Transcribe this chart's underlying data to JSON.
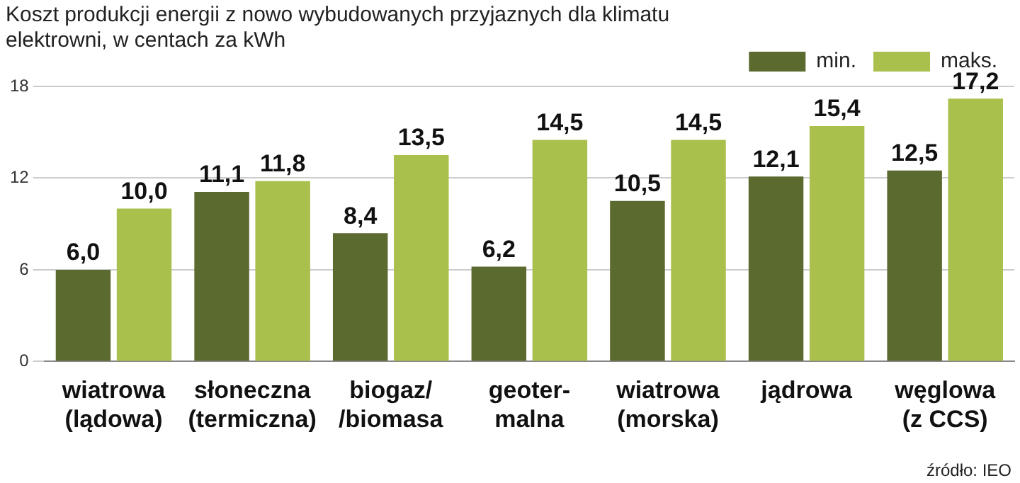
{
  "chart_data": {
    "type": "bar",
    "title": "Koszt produkcji energii z nowo wybudowanych przyjaznych dla klimatu elektrowni, w centach za kWh",
    "categories": [
      "wiatrowa\n(lądowa)",
      "słoneczna\n(termiczna)",
      "biogaz/\n/biomasa",
      "geoter-\nmalna",
      "wiatrowa\n(morska)",
      "jądrowa",
      "węglowa\n(z CCS)"
    ],
    "series": [
      {
        "name": "min.",
        "color": "#5b6a2f",
        "values": [
          6.0,
          11.1,
          8.4,
          6.2,
          10.5,
          12.1,
          12.5
        ],
        "value_labels": [
          "6,0",
          "11,1",
          "8,4",
          "6,2",
          "10,5",
          "12,1",
          "12,5"
        ]
      },
      {
        "name": "maks.",
        "color": "#a9c04c",
        "values": [
          10.0,
          11.8,
          13.5,
          14.5,
          14.5,
          15.4,
          17.2
        ],
        "value_labels": [
          "10,0",
          "11,8",
          "13,5",
          "14,5",
          "14,5",
          "15,4",
          "17,2"
        ]
      }
    ],
    "ylim": [
      0,
      18
    ],
    "yticks": [
      0,
      6,
      12,
      18
    ],
    "grid": "y",
    "legend": "top right",
    "annotations": [
      "źródło: IEO"
    ]
  }
}
